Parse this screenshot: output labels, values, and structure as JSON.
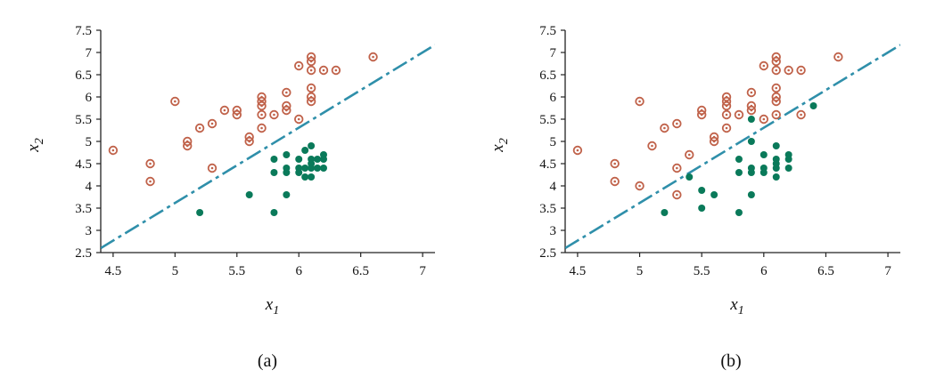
{
  "colors": {
    "class_a": "#C0624A",
    "class_b": "#0A7A5A",
    "boundary": "#2F8FAA"
  },
  "chart_data": [
    {
      "type": "scatter",
      "caption": "(a)",
      "xlabel": "x",
      "xlabel_sub": "1",
      "ylabel": "x",
      "ylabel_sub": "2",
      "xlim": [
        4.4,
        7.1
      ],
      "ylim": [
        2.5,
        7.5
      ],
      "xticks": [
        "4.5",
        "5",
        "5.5",
        "6",
        "6.5",
        "7"
      ],
      "yticks": [
        "2.5",
        "3",
        "3.5",
        "4",
        "4.5",
        "5",
        "5.5",
        "6",
        "6.5",
        "7",
        "7.5"
      ],
      "grid": false,
      "boundary_line": [
        [
          4.4,
          2.6
        ],
        [
          7.1,
          7.17
        ]
      ],
      "series": [
        {
          "marker": "ring",
          "points": [
            [
              4.5,
              4.8
            ],
            [
              4.8,
              4.5
            ],
            [
              4.8,
              4.1
            ],
            [
              5.0,
              5.9
            ],
            [
              5.1,
              5.0
            ],
            [
              5.1,
              4.9
            ],
            [
              5.2,
              5.3
            ],
            [
              5.3,
              5.4
            ],
            [
              5.3,
              4.4
            ],
            [
              5.4,
              5.7
            ],
            [
              5.5,
              5.7
            ],
            [
              5.5,
              5.6
            ],
            [
              5.6,
              5.1
            ],
            [
              5.6,
              5.0
            ],
            [
              5.7,
              6.0
            ],
            [
              5.7,
              5.9
            ],
            [
              5.7,
              5.8
            ],
            [
              5.7,
              5.6
            ],
            [
              5.7,
              5.3
            ],
            [
              5.8,
              5.6
            ],
            [
              5.9,
              6.1
            ],
            [
              5.9,
              5.8
            ],
            [
              5.9,
              5.7
            ],
            [
              6.0,
              6.7
            ],
            [
              6.0,
              5.5
            ],
            [
              6.1,
              6.9
            ],
            [
              6.1,
              6.8
            ],
            [
              6.1,
              6.6
            ],
            [
              6.1,
              6.2
            ],
            [
              6.1,
              6.0
            ],
            [
              6.1,
              5.9
            ],
            [
              6.2,
              6.6
            ],
            [
              6.3,
              6.6
            ],
            [
              6.6,
              6.9
            ]
          ]
        },
        {
          "marker": "dot",
          "points": [
            [
              5.2,
              3.4
            ],
            [
              5.6,
              3.8
            ],
            [
              5.8,
              3.4
            ],
            [
              5.8,
              4.6
            ],
            [
              5.8,
              4.3
            ],
            [
              5.9,
              4.7
            ],
            [
              5.9,
              4.4
            ],
            [
              5.9,
              4.3
            ],
            [
              5.9,
              3.8
            ],
            [
              6.0,
              4.6
            ],
            [
              6.0,
              4.4
            ],
            [
              6.0,
              4.3
            ],
            [
              6.05,
              4.8
            ],
            [
              6.05,
              4.4
            ],
            [
              6.05,
              4.2
            ],
            [
              6.1,
              4.9
            ],
            [
              6.1,
              4.6
            ],
            [
              6.1,
              4.5
            ],
            [
              6.1,
              4.4
            ],
            [
              6.1,
              4.2
            ],
            [
              6.15,
              4.6
            ],
            [
              6.15,
              4.4
            ],
            [
              6.2,
              4.7
            ],
            [
              6.2,
              4.6
            ],
            [
              6.2,
              4.4
            ]
          ]
        }
      ]
    },
    {
      "type": "scatter",
      "caption": "(b)",
      "xlabel": "x",
      "xlabel_sub": "1",
      "ylabel": "x",
      "ylabel_sub": "2",
      "xlim": [
        4.4,
        7.1
      ],
      "ylim": [
        2.5,
        7.5
      ],
      "xticks": [
        "4.5",
        "5",
        "5.5",
        "6",
        "6.5",
        "7"
      ],
      "yticks": [
        "2.5",
        "3",
        "3.5",
        "4",
        "4.5",
        "5",
        "5.5",
        "6",
        "6.5",
        "7",
        "7.5"
      ],
      "grid": false,
      "boundary_line": [
        [
          4.4,
          2.6
        ],
        [
          7.1,
          7.17
        ]
      ],
      "series": [
        {
          "marker": "ring",
          "points": [
            [
              4.5,
              4.8
            ],
            [
              4.8,
              4.5
            ],
            [
              4.8,
              4.1
            ],
            [
              5.0,
              5.9
            ],
            [
              5.0,
              4.0
            ],
            [
              5.1,
              4.9
            ],
            [
              5.2,
              5.3
            ],
            [
              5.3,
              5.4
            ],
            [
              5.3,
              4.4
            ],
            [
              5.3,
              3.8
            ],
            [
              5.4,
              4.7
            ],
            [
              5.5,
              5.7
            ],
            [
              5.5,
              5.6
            ],
            [
              5.6,
              5.1
            ],
            [
              5.6,
              5.0
            ],
            [
              5.7,
              6.0
            ],
            [
              5.7,
              5.9
            ],
            [
              5.7,
              5.8
            ],
            [
              5.7,
              5.6
            ],
            [
              5.7,
              5.3
            ],
            [
              5.8,
              5.6
            ],
            [
              5.9,
              6.1
            ],
            [
              5.9,
              5.8
            ],
            [
              5.9,
              5.7
            ],
            [
              6.0,
              6.7
            ],
            [
              6.0,
              5.5
            ],
            [
              6.1,
              6.9
            ],
            [
              6.1,
              6.8
            ],
            [
              6.1,
              6.6
            ],
            [
              6.1,
              6.2
            ],
            [
              6.1,
              6.0
            ],
            [
              6.1,
              5.9
            ],
            [
              6.1,
              5.6
            ],
            [
              6.2,
              6.6
            ],
            [
              6.3,
              6.6
            ],
            [
              6.3,
              5.6
            ],
            [
              6.6,
              6.9
            ]
          ]
        },
        {
          "marker": "dot",
          "points": [
            [
              5.2,
              3.4
            ],
            [
              5.4,
              4.2
            ],
            [
              5.5,
              3.9
            ],
            [
              5.5,
              3.5
            ],
            [
              5.6,
              3.8
            ],
            [
              5.8,
              3.4
            ],
            [
              5.8,
              4.6
            ],
            [
              5.8,
              4.3
            ],
            [
              5.9,
              5.5
            ],
            [
              5.9,
              5.0
            ],
            [
              5.9,
              4.4
            ],
            [
              5.9,
              4.3
            ],
            [
              5.9,
              3.8
            ],
            [
              6.0,
              4.7
            ],
            [
              6.0,
              4.4
            ],
            [
              6.0,
              4.3
            ],
            [
              6.1,
              4.9
            ],
            [
              6.1,
              4.6
            ],
            [
              6.1,
              4.5
            ],
            [
              6.1,
              4.4
            ],
            [
              6.1,
              4.2
            ],
            [
              6.2,
              4.7
            ],
            [
              6.2,
              4.6
            ],
            [
              6.2,
              4.4
            ],
            [
              6.4,
              5.8
            ]
          ]
        }
      ]
    }
  ]
}
